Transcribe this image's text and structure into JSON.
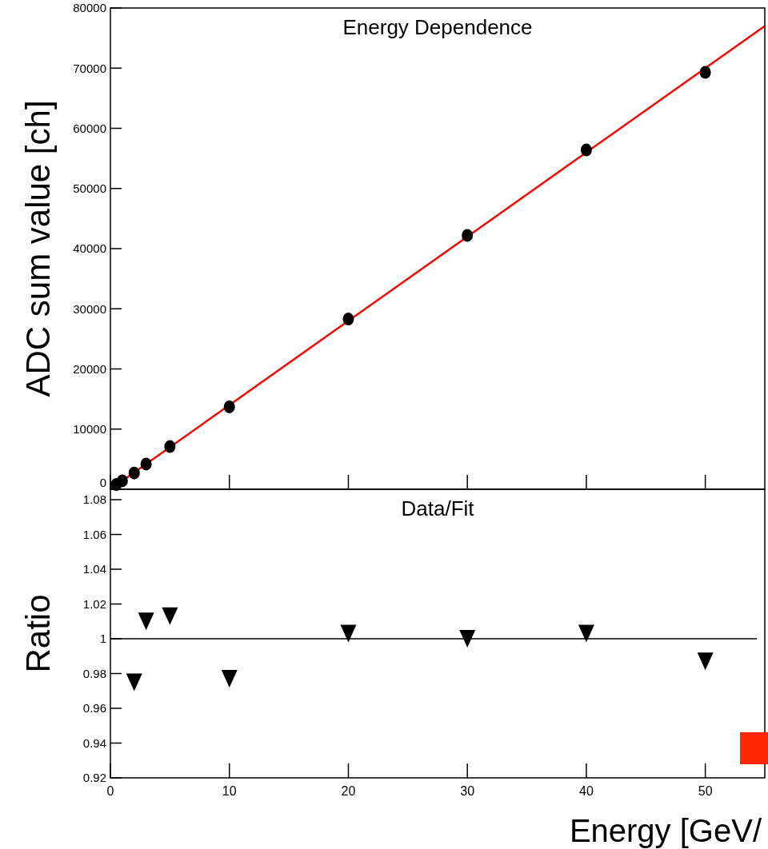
{
  "chart_data": [
    {
      "type": "scatter",
      "title": "Energy Dependence",
      "ylabel": "ADC sum value [ch]",
      "xlim": [
        0,
        55
      ],
      "xticks": [
        0,
        10,
        20,
        30,
        40,
        50
      ],
      "ylim": [
        0,
        80000
      ],
      "yticks": [
        0,
        10000,
        20000,
        30000,
        40000,
        50000,
        60000,
        70000,
        80000
      ],
      "tick_labels": "y",
      "series": [
        {
          "marker": "circle",
          "color": "#000000",
          "x": [
            0.5,
            1,
            2,
            3,
            5,
            10,
            20,
            30,
            40,
            50
          ],
          "values": [
            800,
            1400,
            2700,
            4200,
            7100,
            13700,
            28300,
            42200,
            56400,
            69300
          ]
        },
        {
          "type": "line",
          "color": "#ff0000",
          "line_style": "solid",
          "x": [
            0,
            55
          ],
          "values": [
            0,
            77000
          ]
        }
      ]
    },
    {
      "type": "scatter",
      "title": "Data/Fit",
      "xlabel": "Energy [GeV/",
      "ylabel": "Ratio",
      "xlim": [
        0,
        55
      ],
      "xticks": [
        0,
        10,
        20,
        30,
        40,
        50
      ],
      "ylim": [
        0.92,
        1.086
      ],
      "yticks": [
        0.92,
        0.94,
        0.96,
        0.98,
        1,
        1.02,
        1.04,
        1.06,
        1.08
      ],
      "ref_lines": [
        {
          "axis": "y",
          "value": 1,
          "color": "#000000"
        }
      ],
      "series": [
        {
          "marker": "triangle",
          "color": "#000000",
          "x": [
            2,
            3,
            5,
            10,
            20,
            30,
            40,
            50
          ],
          "values": [
            0.975,
            1.01,
            1.013,
            0.977,
            1.003,
            1.0,
            1.003,
            0.987
          ]
        }
      ]
    }
  ]
}
